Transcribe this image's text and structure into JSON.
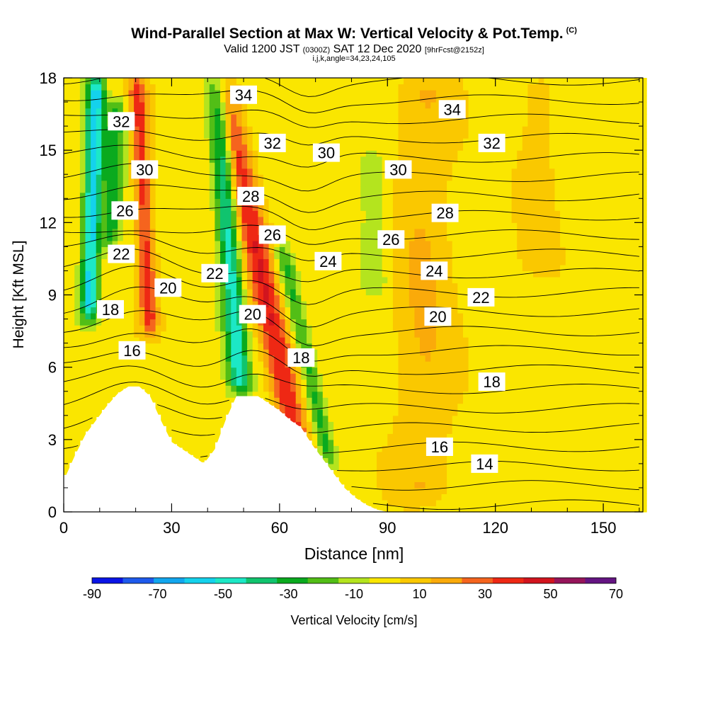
{
  "titles": {
    "main": "Wind-Parallel Section at Max W: Vertical Velocity & Pot.Temp.",
    "copyright": "(C)",
    "valid_prefix": "Valid 1200 JST",
    "valid_utc": "(0300Z)",
    "valid_date": "SAT 12 Dec 2020",
    "forecast_info": "[9hrFcst@2152z]",
    "grid_info": "i,j,k,angle=34,23,24,105"
  },
  "chart_data": {
    "type": "heatmap",
    "title": "Wind-Parallel Section at Max W: Vertical Velocity & Pot.Temp.",
    "xlabel": "Distance [nm]",
    "ylabel": "Height [Kft MSL]",
    "xlim": [
      0,
      161
    ],
    "ylim": [
      0,
      18
    ],
    "x_ticks": [
      0,
      30,
      60,
      90,
      120,
      150
    ],
    "y_ticks": [
      0,
      3,
      6,
      9,
      12,
      15,
      18
    ],
    "colorbar": {
      "label": "Vertical Velocity [cm/s]",
      "tick_labels": [
        "-90",
        "-70",
        "-50",
        "-30",
        "-10",
        "10",
        "30",
        "50",
        "70"
      ],
      "bounds": [
        -90,
        -80,
        -70,
        -60,
        -50,
        -40,
        -30,
        -20,
        -10,
        0,
        10,
        20,
        30,
        40,
        50,
        60,
        70
      ],
      "colors": [
        "#0a14e6",
        "#1e5aec",
        "#12a6ee",
        "#14d2ec",
        "#1ce8c6",
        "#10c46e",
        "#0aaa1e",
        "#52be16",
        "#b4e41e",
        "#fae600",
        "#fac800",
        "#faaa0a",
        "#f5641e",
        "#ee2814",
        "#d2141e",
        "#96145a",
        "#641482"
      ]
    },
    "terrain": [
      [
        0,
        1.3
      ],
      [
        3,
        2.3
      ],
      [
        6,
        3.2
      ],
      [
        9,
        3.8
      ],
      [
        12,
        4.4
      ],
      [
        15,
        4.9
      ],
      [
        18,
        5.2
      ],
      [
        21,
        5.2
      ],
      [
        24,
        4.8
      ],
      [
        27,
        3.8
      ],
      [
        30,
        2.9
      ],
      [
        33,
        2.6
      ],
      [
        36,
        2.3
      ],
      [
        39,
        2.0
      ],
      [
        42,
        2.6
      ],
      [
        45,
        3.8
      ],
      [
        48,
        4.8
      ],
      [
        51,
        4.8
      ],
      [
        54,
        4.8
      ],
      [
        57,
        4.5
      ],
      [
        60,
        4.2
      ],
      [
        63,
        3.8
      ],
      [
        66,
        3.5
      ],
      [
        69,
        2.8
      ],
      [
        72,
        2.2
      ],
      [
        75,
        1.6
      ],
      [
        78,
        1.0
      ],
      [
        81,
        0.6
      ],
      [
        84,
        0.3
      ],
      [
        87,
        0.1
      ],
      [
        90,
        0
      ]
    ],
    "theta_contours": {
      "levels": [
        14,
        15,
        16,
        17,
        18,
        19,
        20,
        21,
        22,
        23,
        24,
        25,
        26,
        27,
        28,
        29,
        30,
        31,
        32,
        33,
        34,
        35,
        36
      ],
      "labels": [
        {
          "value": "34",
          "x": 50,
          "y": 17.3
        },
        {
          "value": "34",
          "x": 108,
          "y": 16.7
        },
        {
          "value": "32",
          "x": 16,
          "y": 16.2
        },
        {
          "value": "32",
          "x": 58,
          "y": 15.3
        },
        {
          "value": "32",
          "x": 119,
          "y": 15.3
        },
        {
          "value": "30",
          "x": 22.5,
          "y": 14.2
        },
        {
          "value": "30",
          "x": 73,
          "y": 14.9
        },
        {
          "value": "30",
          "x": 93,
          "y": 14.2
        },
        {
          "value": "28",
          "x": 52,
          "y": 13.1
        },
        {
          "value": "28",
          "x": 106,
          "y": 12.4
        },
        {
          "value": "26",
          "x": 17,
          "y": 12.5
        },
        {
          "value": "26",
          "x": 58,
          "y": 11.5
        },
        {
          "value": "26",
          "x": 91,
          "y": 11.3
        },
        {
          "value": "24",
          "x": 73.5,
          "y": 10.4
        },
        {
          "value": "24",
          "x": 103,
          "y": 10.0
        },
        {
          "value": "22",
          "x": 16,
          "y": 10.7
        },
        {
          "value": "22",
          "x": 42,
          "y": 9.9
        },
        {
          "value": "22",
          "x": 116,
          "y": 8.9
        },
        {
          "value": "20",
          "x": 29,
          "y": 9.3
        },
        {
          "value": "20",
          "x": 52.5,
          "y": 8.2
        },
        {
          "value": "20",
          "x": 104,
          "y": 8.1
        },
        {
          "value": "18",
          "x": 13,
          "y": 8.4
        },
        {
          "value": "18",
          "x": 66,
          "y": 6.4
        },
        {
          "value": "18",
          "x": 119,
          "y": 5.4
        },
        {
          "value": "16",
          "x": 19,
          "y": 6.7
        },
        {
          "value": "16",
          "x": 104.5,
          "y": 2.7
        },
        {
          "value": "14",
          "x": 117,
          "y": 2.0
        }
      ]
    },
    "velocity_features": [
      {
        "name": "updraft",
        "x": 24,
        "ytop": 18,
        "ybot": 7.5,
        "slope": -0.35,
        "width": 2.5,
        "peak": 38
      },
      {
        "name": "downdraft",
        "x": 7,
        "ytop": 18,
        "ybot": 8,
        "slope": 0.2,
        "width": 2.5,
        "peak": -62
      },
      {
        "name": "downdraft",
        "x": 13,
        "ytop": 17,
        "ybot": 11,
        "slope": 0.3,
        "width": 2.5,
        "peak": -32
      },
      {
        "name": "downdraft",
        "x": 49,
        "ytop": 18,
        "ybot": 5,
        "slope": -0.5,
        "width": 3,
        "peak": -52
      },
      {
        "name": "updraft",
        "x": 66,
        "ytop": 18,
        "ybot": 2,
        "slope": -1.4,
        "width": 4,
        "peak": 42
      },
      {
        "name": "downdraft",
        "x": 74,
        "ytop": 11,
        "ybot": 2,
        "slope": -1.5,
        "width": 2.5,
        "peak": -30
      },
      {
        "name": "updraft",
        "x": 100,
        "ytop": 18,
        "ybot": 0.5,
        "slope": 0,
        "width": 8,
        "peak": 14
      },
      {
        "name": "downdraft",
        "x": 87,
        "ytop": 15,
        "ybot": 9,
        "slope": -0.3,
        "width": 4,
        "peak": -14
      },
      {
        "name": "updraft",
        "x": 132,
        "ytop": 18,
        "ybot": 10,
        "slope": 0,
        "width": 5,
        "peak": 10
      }
    ]
  }
}
